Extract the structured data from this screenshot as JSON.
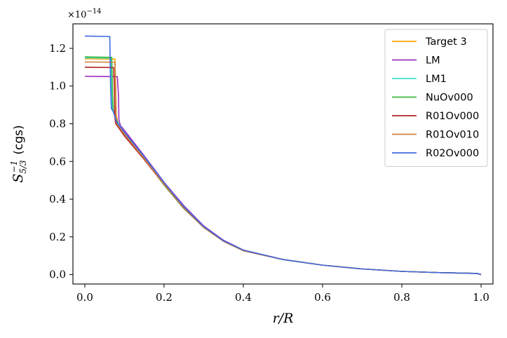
{
  "chart_data": {
    "type": "line",
    "xlabel": "r/R",
    "ylabel": "S",
    "ylabel_sub": "5/3",
    "ylabel_sup": "−1",
    "ylabel_units": "(cgs)",
    "y_offset_text": "×10",
    "y_offset_exp": "−14",
    "xlim": [
      -0.03,
      1.03
    ],
    "ylim": [
      -0.05,
      1.33
    ],
    "x_ticks": [
      0.0,
      0.2,
      0.4,
      0.6,
      0.8,
      1.0
    ],
    "x_tick_labels": [
      "0.0",
      "0.2",
      "0.4",
      "0.6",
      "0.8",
      "1.0"
    ],
    "y_ticks": [
      0.0,
      0.2,
      0.4,
      0.6,
      0.8,
      1.0,
      1.2
    ],
    "y_tick_labels": [
      "0.0",
      "0.2",
      "0.4",
      "0.6",
      "0.8",
      "1.0",
      "1.2"
    ],
    "grid": false,
    "legend_position": "top-right",
    "series": [
      {
        "name": "Target 3",
        "color": "#FFA500",
        "core_value": 1.145,
        "core_edge": 0.078,
        "drop_to": 0.79,
        "tail_scale": 1.0,
        "x": [
          0.0,
          0.076,
          0.078,
          0.079,
          0.085,
          0.1,
          0.15,
          0.2,
          0.25,
          0.3,
          0.35,
          0.4,
          0.5,
          0.6,
          0.7,
          0.8,
          0.9,
          0.99,
          1.0
        ],
        "y": [
          1.145,
          1.143,
          1.0,
          0.85,
          0.79,
          0.75,
          0.62,
          0.485,
          0.36,
          0.255,
          0.18,
          0.13,
          0.08,
          0.05,
          0.03,
          0.017,
          0.01,
          0.006,
          0.0
        ]
      },
      {
        "name": "LM",
        "color": "#9B30C0",
        "core_value": 1.05,
        "core_edge": 0.085,
        "drop_to": 0.79,
        "tail_scale": 1.0,
        "x": [
          0.0,
          0.082,
          0.085,
          0.086,
          0.09,
          0.1,
          0.15,
          0.2,
          0.25,
          0.3,
          0.35,
          0.4,
          0.5,
          0.6,
          0.7,
          0.8,
          0.9,
          0.99,
          1.0
        ],
        "y": [
          1.052,
          1.05,
          0.95,
          0.82,
          0.79,
          0.765,
          0.63,
          0.49,
          0.365,
          0.258,
          0.182,
          0.13,
          0.08,
          0.05,
          0.03,
          0.017,
          0.01,
          0.006,
          0.0
        ]
      },
      {
        "name": "LM1",
        "color": "#40E0D0",
        "core_value": 1.15,
        "core_edge": 0.068,
        "drop_to": 0.86,
        "tail_scale": 1.0,
        "x": [
          0.0,
          0.066,
          0.068,
          0.07,
          0.075,
          0.085,
          0.1,
          0.15,
          0.2,
          0.25,
          0.3,
          0.35,
          0.4,
          0.5,
          0.6,
          0.7,
          0.8,
          0.9,
          0.99,
          1.0
        ],
        "y": [
          1.15,
          1.148,
          0.95,
          0.87,
          0.85,
          0.8,
          0.75,
          0.62,
          0.48,
          0.355,
          0.252,
          0.178,
          0.128,
          0.08,
          0.05,
          0.03,
          0.017,
          0.01,
          0.006,
          0.0
        ]
      },
      {
        "name": "NuOv000",
        "color": "#3CB83C",
        "core_value": 1.155,
        "core_edge": 0.07,
        "drop_to": 0.86,
        "tail_scale": 1.0,
        "x": [
          0.0,
          0.068,
          0.07,
          0.072,
          0.077,
          0.085,
          0.1,
          0.15,
          0.2,
          0.25,
          0.3,
          0.35,
          0.4,
          0.5,
          0.6,
          0.7,
          0.8,
          0.9,
          0.99,
          1.0
        ],
        "y": [
          1.155,
          1.152,
          0.95,
          0.87,
          0.84,
          0.795,
          0.745,
          0.615,
          0.475,
          0.35,
          0.25,
          0.177,
          0.127,
          0.08,
          0.05,
          0.03,
          0.017,
          0.01,
          0.006,
          0.0
        ]
      },
      {
        "name": "R01Ov000",
        "color": "#B22222",
        "core_value": 1.1,
        "core_edge": 0.075,
        "drop_to": 0.8,
        "tail_scale": 1.0,
        "x": [
          0.0,
          0.073,
          0.075,
          0.076,
          0.078,
          0.085,
          0.1,
          0.15,
          0.2,
          0.25,
          0.3,
          0.35,
          0.4,
          0.5,
          0.6,
          0.7,
          0.8,
          0.9,
          0.99,
          1.0
        ],
        "y": [
          1.1,
          1.098,
          0.95,
          0.83,
          0.8,
          0.78,
          0.735,
          0.61,
          0.478,
          0.352,
          0.25,
          0.177,
          0.127,
          0.08,
          0.05,
          0.03,
          0.017,
          0.01,
          0.006,
          0.0
        ]
      },
      {
        "name": "R01Ov010",
        "color": "#CD853F",
        "core_value": 1.128,
        "core_edge": 0.078,
        "drop_to": 0.8,
        "tail_scale": 1.0,
        "x": [
          0.0,
          0.076,
          0.078,
          0.079,
          0.081,
          0.088,
          0.1,
          0.15,
          0.2,
          0.25,
          0.3,
          0.35,
          0.4,
          0.5,
          0.6,
          0.7,
          0.8,
          0.9,
          0.99,
          1.0
        ],
        "y": [
          1.128,
          1.126,
          0.95,
          0.83,
          0.8,
          0.78,
          0.745,
          0.615,
          0.48,
          0.354,
          0.251,
          0.178,
          0.128,
          0.08,
          0.05,
          0.03,
          0.017,
          0.01,
          0.006,
          0.0
        ]
      },
      {
        "name": "R02Ov000",
        "color": "#4169E1",
        "core_value": 1.265,
        "core_edge": 0.065,
        "drop_to": 0.87,
        "tail_scale": 1.0,
        "x": [
          0.0,
          0.063,
          0.065,
          0.067,
          0.071,
          0.08,
          0.1,
          0.15,
          0.2,
          0.25,
          0.3,
          0.35,
          0.4,
          0.5,
          0.6,
          0.7,
          0.8,
          0.9,
          0.99,
          1.0
        ],
        "y": [
          1.265,
          1.263,
          1.0,
          0.88,
          0.87,
          0.81,
          0.755,
          0.625,
          0.488,
          0.36,
          0.255,
          0.18,
          0.13,
          0.08,
          0.05,
          0.03,
          0.017,
          0.01,
          0.006,
          0.0
        ]
      }
    ]
  }
}
